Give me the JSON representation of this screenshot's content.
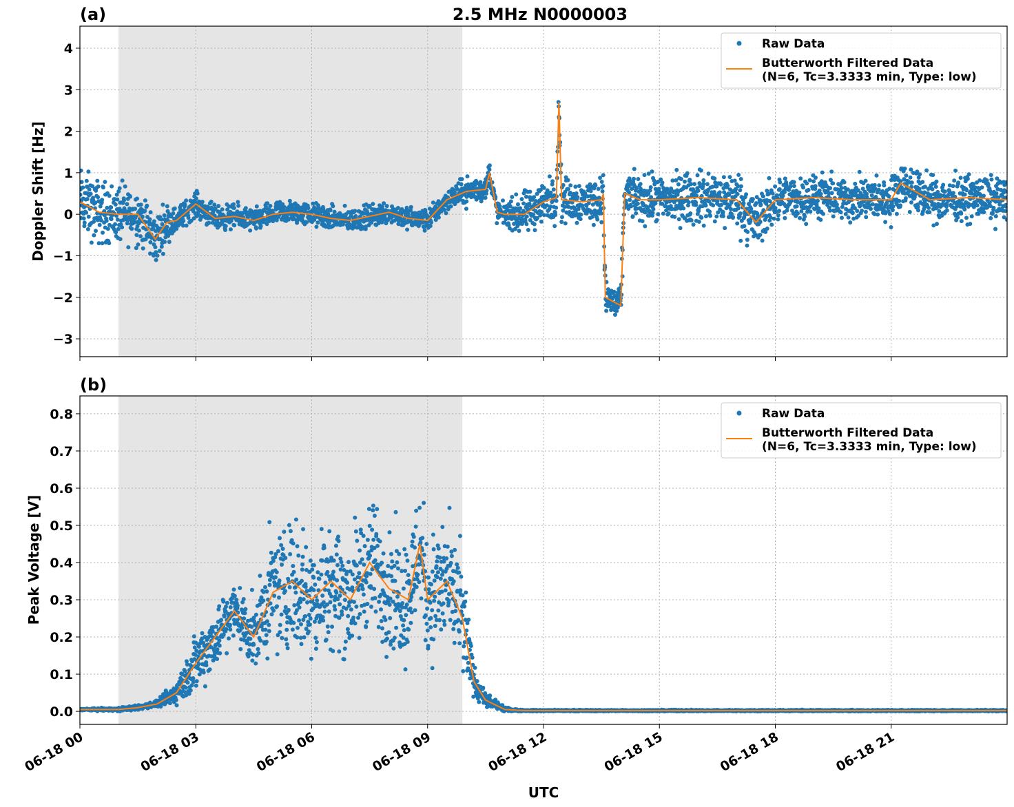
{
  "title": "2.5 MHz N0000003",
  "xlabel": "UTC",
  "colors": {
    "raw": "#1f77b4",
    "filtered": "#ff7f0e",
    "shade": "#e5e5e5",
    "grid": "#b0b0b0"
  },
  "legend": {
    "raw": "Raw Data",
    "filtered_line1": "Butterworth Filtered Data",
    "filtered_line2": "(N=6, Tc=3.3333 min, Type: low)",
    "placement": "upper-right"
  },
  "chart_data": [
    {
      "panel": "(a)",
      "type": "scatter+line",
      "ylabel": "Doppler Shift [Hz]",
      "xlim": [
        "06-18 00:00",
        "06-19 00:00"
      ],
      "ylim": [
        -3.43,
        4.53
      ],
      "yticks": [
        4,
        3,
        2,
        1,
        0,
        -1,
        -2,
        -3
      ],
      "xticks": [
        "06-18 00",
        "06-18 03",
        "06-18 06",
        "06-18 09",
        "06-18 12",
        "06-18 15",
        "06-18 18",
        "06-18 21"
      ],
      "grid": true,
      "shaded_interval": [
        "06-18 01:00",
        "06-18 09:54"
      ],
      "filtered": {
        "x": [
          "06-18 00:00",
          "06-18 00:30",
          "06-18 01:00",
          "06-18 01:30",
          "06-18 01:57",
          "06-18 02:15",
          "06-18 02:30",
          "06-18 03:00",
          "06-18 03:30",
          "06-18 04:00",
          "06-18 04:30",
          "06-18 05:00",
          "06-18 05:30",
          "06-18 06:00",
          "06-18 06:30",
          "06-18 07:00",
          "06-18 07:30",
          "06-18 08:00",
          "06-18 08:30",
          "06-18 09:00",
          "06-18 09:30",
          "06-18 10:00",
          "06-18 10:30",
          "06-18 10:36",
          "06-18 10:48",
          "06-18 11:00",
          "06-18 11:30",
          "06-18 12:00",
          "06-18 12:20",
          "06-18 12:24",
          "06-18 12:28",
          "06-18 13:00",
          "06-18 13:30",
          "06-18 13:33",
          "06-18 13:36",
          "06-18 14:00",
          "06-18 14:06",
          "06-18 14:30",
          "06-18 15:00",
          "06-18 16:00",
          "06-18 17:00",
          "06-18 17:30",
          "06-18 18:00",
          "06-18 19:00",
          "06-18 20:00",
          "06-18 21:00",
          "06-18 21:15",
          "06-18 22:00",
          "06-18 23:00",
          "06-19 00:00"
        ],
        "y": [
          0.3,
          0.05,
          0.0,
          0.0,
          -0.6,
          -0.2,
          -0.15,
          0.25,
          -0.1,
          -0.05,
          -0.15,
          0.0,
          0.05,
          0.0,
          -0.1,
          -0.15,
          -0.05,
          0.05,
          -0.1,
          -0.15,
          0.35,
          0.55,
          0.6,
          1.0,
          0.05,
          0.0,
          0.0,
          0.3,
          0.4,
          2.7,
          0.35,
          0.3,
          0.35,
          0.5,
          -2.0,
          -2.2,
          0.5,
          0.35,
          0.35,
          0.4,
          0.35,
          -0.2,
          0.35,
          0.4,
          0.35,
          0.35,
          0.75,
          0.35,
          0.4,
          0.35
        ]
      },
      "raw_spread": {
        "x": [
          "06-18 00:00",
          "06-18 01:30",
          "06-18 02:00",
          "06-18 02:30",
          "06-18 09:30",
          "06-18 10:00",
          "06-18 11:00",
          "06-18 11:30",
          "06-18 13:30",
          "06-18 14:00",
          "06-18 14:06",
          "06-18 17:30",
          "06-18 18:00",
          "06-19 00:00"
        ],
        "half_width": [
          1.2,
          1.0,
          0.9,
          0.45,
          0.4,
          0.5,
          0.4,
          0.8,
          0.8,
          0.6,
          0.8,
          1.1,
          0.8,
          0.8
        ]
      }
    },
    {
      "panel": "(b)",
      "type": "scatter+line",
      "ylabel": "Peak Voltage [V]",
      "xlim": [
        "06-18 00:00",
        "06-19 00:00"
      ],
      "ylim": [
        -0.035,
        0.848
      ],
      "yticks": [
        0.8,
        0.7,
        0.6,
        0.5,
        0.4,
        0.3,
        0.2,
        0.1,
        0.0
      ],
      "xticks": [
        "06-18 00",
        "06-18 03",
        "06-18 06",
        "06-18 09",
        "06-18 12",
        "06-18 15",
        "06-18 18",
        "06-18 21"
      ],
      "grid": true,
      "shaded_interval": [
        "06-18 01:00",
        "06-18 09:54"
      ],
      "filtered": {
        "x": [
          "06-18 00:00",
          "06-18 01:00",
          "06-18 01:30",
          "06-18 02:00",
          "06-18 02:30",
          "06-18 03:00",
          "06-18 03:30",
          "06-18 04:00",
          "06-18 04:30",
          "06-18 05:00",
          "06-18 05:30",
          "06-18 06:00",
          "06-18 06:30",
          "06-18 07:00",
          "06-18 07:30",
          "06-18 08:00",
          "06-18 08:30",
          "06-18 08:48",
          "06-18 09:00",
          "06-18 09:30",
          "06-18 09:54",
          "06-18 10:12",
          "06-18 10:30",
          "06-18 11:00",
          "06-18 11:30",
          "06-19 00:00"
        ],
        "y": [
          0.005,
          0.005,
          0.01,
          0.02,
          0.05,
          0.13,
          0.2,
          0.27,
          0.2,
          0.32,
          0.35,
          0.3,
          0.35,
          0.3,
          0.4,
          0.33,
          0.3,
          0.45,
          0.3,
          0.35,
          0.25,
          0.08,
          0.03,
          0.005,
          0.002,
          0.002
        ]
      },
      "raw_spread": {
        "x": [
          "06-18 00:00",
          "06-18 02:00",
          "06-18 02:30",
          "06-18 03:00",
          "06-18 04:30",
          "06-18 05:00",
          "06-18 09:54",
          "06-18 10:12",
          "06-18 10:30",
          "06-18 11:00",
          "06-18 11:30",
          "06-19 00:00"
        ],
        "half_width": [
          0.003,
          0.012,
          0.05,
          0.12,
          0.13,
          0.25,
          0.25,
          0.06,
          0.03,
          0.008,
          0.003,
          0.003
        ]
      }
    }
  ]
}
